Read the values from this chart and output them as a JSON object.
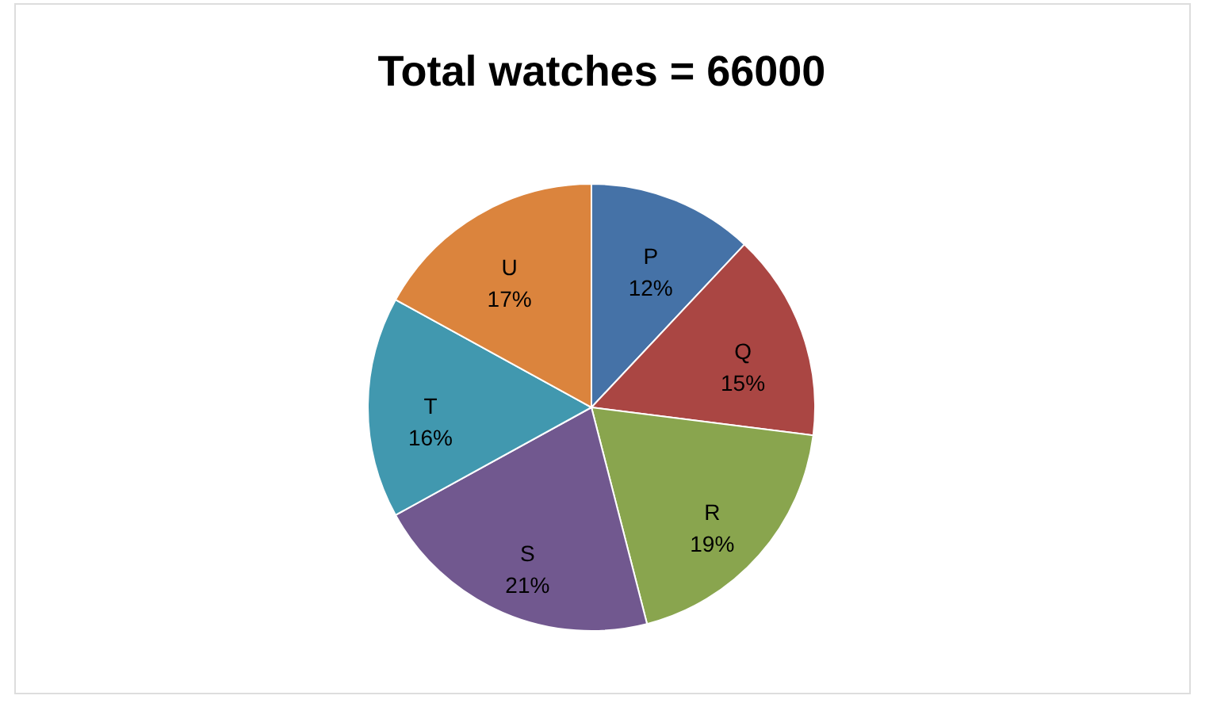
{
  "chart_data": {
    "type": "pie",
    "title": "Total watches = 66000",
    "categories": [
      "P",
      "Q",
      "R",
      "S",
      "T",
      "U"
    ],
    "values": [
      12,
      15,
      19,
      21,
      16,
      17
    ],
    "value_labels": [
      "12%",
      "15%",
      "19%",
      "21%",
      "16%",
      "17%"
    ],
    "colors": [
      "#4572a7",
      "#aa4643",
      "#89a54e",
      "#71588f",
      "#4198af",
      "#db843d"
    ],
    "legend": false
  }
}
